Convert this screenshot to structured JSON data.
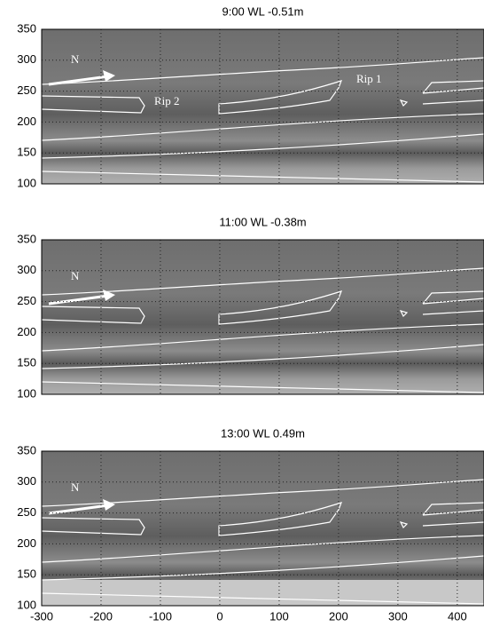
{
  "chart_data": [
    {
      "type": "image",
      "title": "9:00  WL -0.51m",
      "xlim": [
        -300,
        445
      ],
      "ylim": [
        100,
        350
      ],
      "xticks": [
        -300,
        -200,
        -100,
        0,
        100,
        200,
        300,
        400
      ],
      "yticks": [
        100,
        150,
        200,
        250,
        300,
        350
      ],
      "xtick_labels": false,
      "grid": true,
      "annotations": [
        "N",
        "Rip 2",
        "Rip 1"
      ]
    },
    {
      "type": "image",
      "title": "11:00  WL -0.38m",
      "xlim": [
        -300,
        445
      ],
      "ylim": [
        100,
        350
      ],
      "xticks": [
        -300,
        -200,
        -100,
        0,
        100,
        200,
        300,
        400
      ],
      "yticks": [
        100,
        150,
        200,
        250,
        300,
        350
      ],
      "xtick_labels": false,
      "grid": true,
      "annotations": [
        "N"
      ]
    },
    {
      "type": "image",
      "title": "13:00  WL 0.49m",
      "xlim": [
        -300,
        445
      ],
      "ylim": [
        100,
        350
      ],
      "xticks": [
        -300,
        -200,
        -100,
        0,
        100,
        200,
        300,
        400
      ],
      "yticks": [
        100,
        150,
        200,
        250,
        300,
        350
      ],
      "xtick_labels": true,
      "grid": true,
      "annotations": [
        "N"
      ]
    }
  ]
}
